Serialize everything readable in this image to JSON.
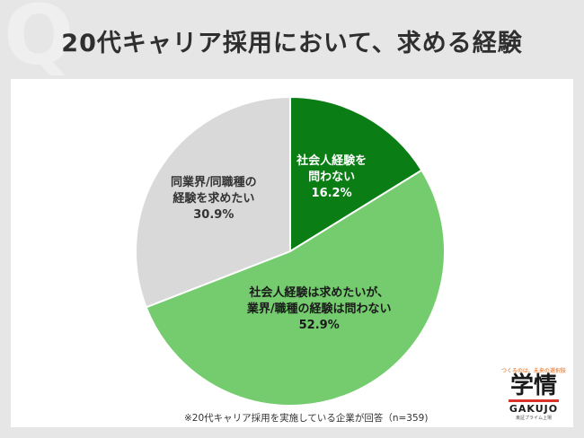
{
  "header": {
    "q_mark": "Q",
    "title": "20代キャリア採用において、求める経験"
  },
  "chart_data": {
    "type": "pie",
    "title": "20代キャリア採用において、求める経験",
    "slices": [
      {
        "label_lines": [
          "社会人経験を",
          "問わない"
        ],
        "value": 16.2,
        "value_label": "16.2%",
        "color": "#0a7d15",
        "text_color": "#ffffff"
      },
      {
        "label_lines": [
          "社会人経験は求めたいが、",
          "業界/職種の経験は問わない"
        ],
        "value": 52.9,
        "value_label": "52.9%",
        "color": "#74cc6e",
        "text_color": "#1a1a1a"
      },
      {
        "label_lines": [
          "同業界/同職種の",
          "経験を求めたい"
        ],
        "value": 30.9,
        "value_label": "30.9%",
        "color": "#d9d9d9",
        "text_color": "#333333"
      }
    ]
  },
  "footnote": "※20代キャリア採用を実施している企業が回答（n=359)",
  "logo": {
    "tagline": "つくるのは、未来の選択肢",
    "kanji": "学情",
    "roman": "GAKUJO",
    "sub": "東証プライム上場"
  }
}
